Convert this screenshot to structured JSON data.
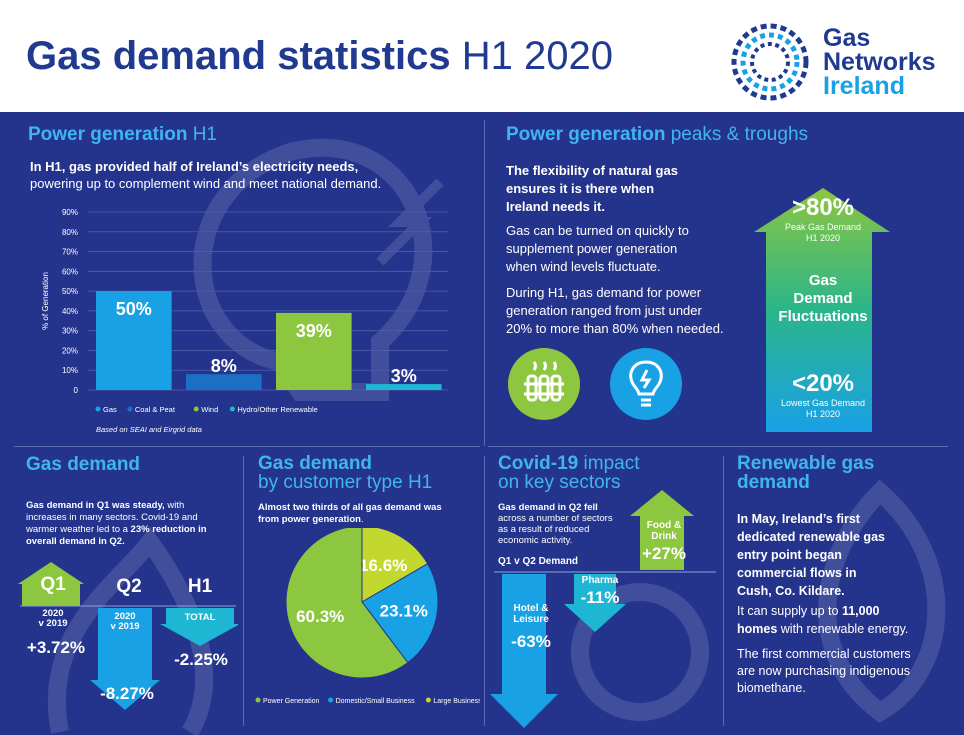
{
  "header": {
    "title_bold": "Gas demand statistics",
    "title_light": "H1 2020",
    "logo_line1": "Gas",
    "logo_line2": "Networks",
    "logo_line3": "Ireland"
  },
  "power_h1": {
    "heading_bold": "Power generation",
    "heading_thin": "H1",
    "intro_bold": "In H1, gas provided half of Ireland’s electricity needs,",
    "intro_rest": "powering up to complement wind and meet national demand.",
    "source": "Based on SEAI and Eirgrid data"
  },
  "chart_data": [
    {
      "type": "bar",
      "categories": [
        "Gas",
        "Coal & Peat",
        "Wind",
        "Hydro/Other Renewable"
      ],
      "values": [
        50,
        8,
        39,
        3
      ],
      "data_labels": [
        "50%",
        "8%",
        "39%",
        "3%"
      ],
      "ylabel": "% of Generation",
      "ylim": [
        0,
        90
      ],
      "yticks": [
        "0",
        "10%",
        "20%",
        "30%",
        "40%",
        "50%",
        "60%",
        "70%",
        "80%",
        "90%"
      ],
      "colors": [
        "#19a1e6",
        "#1c6fc3",
        "#8dc63f",
        "#1fb6d4"
      ],
      "legend": "bottom",
      "grid": true
    },
    {
      "type": "pie",
      "title": "Gas demand by customer type H1",
      "categories": [
        "Power Generation",
        "Domestic/Small Business",
        "Large Business"
      ],
      "values": [
        60.3,
        23.1,
        16.6
      ],
      "data_labels": [
        "60.3%",
        "23.1%",
        "16.6%"
      ],
      "colors": [
        "#8dc63f",
        "#19a1e6",
        "#c3d82e"
      ],
      "legend": "bottom"
    }
  ],
  "peaks": {
    "heading_bold": "Power generation",
    "heading_thin": "peaks & troughs",
    "p1_l1": "The flexibility of natural gas",
    "p1_l2": "ensures it is there when",
    "p1_l3": "Ireland needs it.",
    "p2_l1": "Gas can be turned on quickly to",
    "p2_l2": "supplement power generation",
    "p2_l3": "when wind levels fluctuate.",
    "p3_l1": "During H1, gas demand for power",
    "p3_l2": "generation ranged from just under",
    "p3_l3": "20% to more than 80% when needed.",
    "peak_value": ">80%",
    "peak_label_l1": "Peak Gas Demand",
    "peak_label_l2": "H1 2020",
    "mid_l1": "Gas",
    "mid_l2": "Demand",
    "mid_l3": "Fluctuations",
    "low_value": "<20%",
    "low_label_l1": "Lowest Gas Demand",
    "low_label_l2": "H1 2020"
  },
  "gas_demand": {
    "heading": "Gas demand",
    "text_l1_bold": "Gas demand in Q1 was steady,",
    "text_l1_rest": " with",
    "text_l2": "increases in many sectors. Covid-19 and",
    "text_l3_a": "warmer weather led to a ",
    "text_l3_b": "23% reduction in",
    "text_l4": "overall demand in Q2.",
    "q1_label": "Q1",
    "q1_sub_l1": "2020",
    "q1_sub_l2": "v 2019",
    "q1_value": "+3.72%",
    "q2_label": "Q2",
    "q2_sub_l1": "2020",
    "q2_sub_l2": "v 2019",
    "q2_value": "-8.27%",
    "h1_label": "H1",
    "h1_sub": "TOTAL",
    "h1_value": "-2.25%"
  },
  "customer_type": {
    "heading_bold": "Gas demand",
    "heading_thin": "by customer type H1",
    "text_l1": "Almost two thirds of all gas demand was",
    "text_l2_a": "from ",
    "text_l2_b": "power generation",
    "text_l2_c": "."
  },
  "covid": {
    "heading_bold": "Covid-19",
    "heading_thin_1": "impact",
    "heading_thin_2": "on key sectors",
    "text_l1_bold": "Gas demand in Q2 fell",
    "text_l2": "across a number of sectors",
    "text_l3": "as a result of reduced",
    "text_l4": "economic activity.",
    "compare_label": "Q1 v Q2 Demand",
    "hotel_l1": "Hotel &",
    "hotel_l2": "Leisure",
    "hotel_value": "-63%",
    "pharma_label": "Pharma",
    "pharma_value": "-11%",
    "food_l1": "Food &",
    "food_l2": "Drink",
    "food_value": "+27%"
  },
  "renewable": {
    "heading_l1": "Renewable gas",
    "heading_l2": "demand",
    "p1_l1": "In May, Ireland’s first",
    "p1_l2": "dedicated renewable gas",
    "p1_l3": "entry point began",
    "p1_l4": "commercial flows in",
    "p1_l5": "Cush, Co. Kildare.",
    "p2_l1_a": "It can supply up to ",
    "p2_l1_b": "11,000",
    "p2_l2_a": "homes",
    "p2_l2_b": " with renewable energy.",
    "p3_l1": "The first commercial customers",
    "p3_l2": "are now purchasing indigenous",
    "p3_l3": "biomethane."
  },
  "icons": [
    "logo-ring-icon",
    "radiator-icon",
    "lightbulb-icon"
  ]
}
